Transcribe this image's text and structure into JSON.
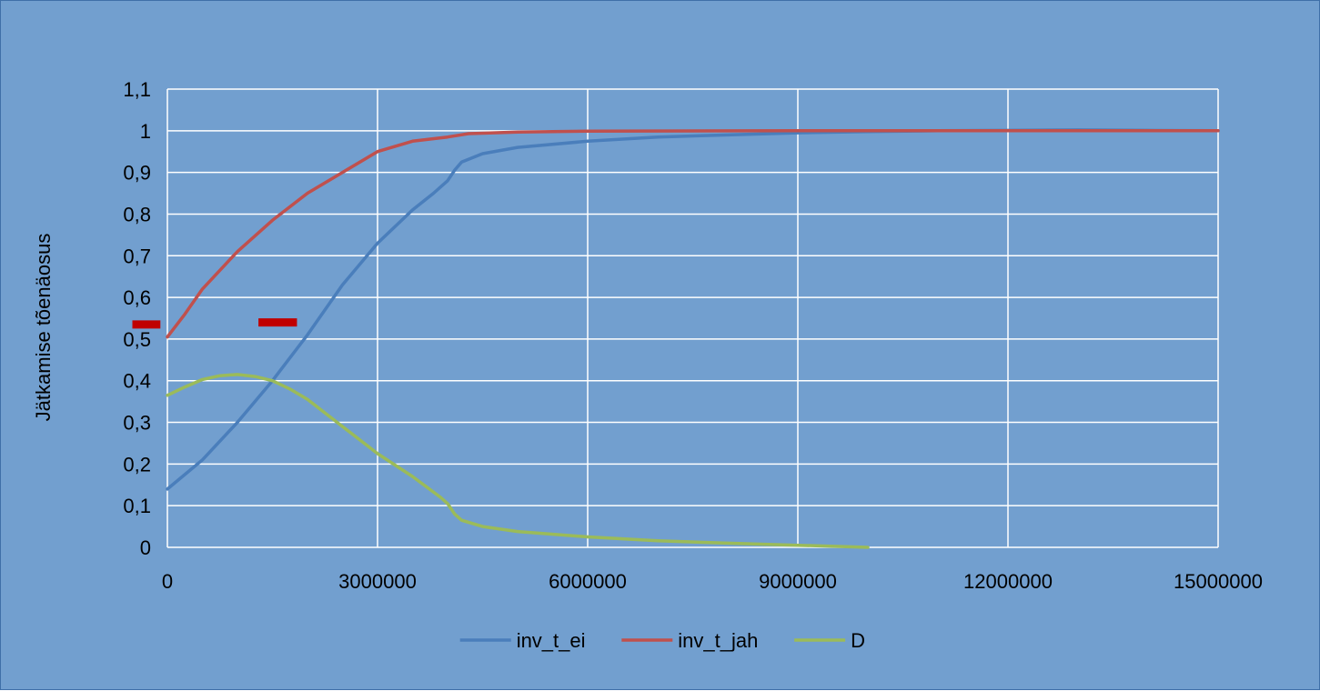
{
  "chart_data": {
    "type": "line",
    "title": "",
    "xlabel": "",
    "ylabel": "Jätkamise tõenäosus",
    "xlim": [
      0,
      15000000
    ],
    "ylim": [
      0,
      1.1
    ],
    "x_ticks": [
      "0",
      "3000000",
      "6000000",
      "9000000",
      "12000000",
      "15000000"
    ],
    "y_ticks": [
      "0",
      "0,1",
      "0,2",
      "0,3",
      "0,4",
      "0,5",
      "0,6",
      "0,7",
      "0,8",
      "0,9",
      "1",
      "1,1"
    ],
    "grid": true,
    "legend_position": "bottom",
    "colors": {
      "background": "#729fcf",
      "grid": "#ffffff",
      "marker": "#c00000"
    },
    "series": [
      {
        "name": "inv_t_ei",
        "color": "#4a7ebb",
        "points": [
          [
            0,
            0.14
          ],
          [
            500000,
            0.21
          ],
          [
            1000000,
            0.3
          ],
          [
            1500000,
            0.4
          ],
          [
            2000000,
            0.51
          ],
          [
            2500000,
            0.63
          ],
          [
            3000000,
            0.73
          ],
          [
            3500000,
            0.81
          ],
          [
            3800000,
            0.85
          ],
          [
            4000000,
            0.88
          ],
          [
            4100000,
            0.905
          ],
          [
            4200000,
            0.925
          ],
          [
            4500000,
            0.945
          ],
          [
            5000000,
            0.96
          ],
          [
            6000000,
            0.975
          ],
          [
            7000000,
            0.985
          ],
          [
            8000000,
            0.99
          ],
          [
            9000000,
            0.995
          ],
          [
            10000000,
            0.998
          ],
          [
            11000000,
            1.0
          ],
          [
            12000000,
            1.001
          ],
          [
            13000000,
            1.002
          ],
          [
            14000000,
            1.001
          ],
          [
            15000000,
            1.0
          ]
        ]
      },
      {
        "name": "inv_t_jah",
        "color": "#c0504d",
        "points": [
          [
            0,
            0.505
          ],
          [
            250000,
            0.56
          ],
          [
            500000,
            0.62
          ],
          [
            1000000,
            0.71
          ],
          [
            1500000,
            0.785
          ],
          [
            2000000,
            0.85
          ],
          [
            2500000,
            0.9
          ],
          [
            3000000,
            0.95
          ],
          [
            3500000,
            0.975
          ],
          [
            4000000,
            0.985
          ],
          [
            4300000,
            0.993
          ],
          [
            5000000,
            0.997
          ],
          [
            6000000,
            0.999
          ],
          [
            9000000,
            1.0
          ],
          [
            12000000,
            1.0
          ],
          [
            15000000,
            1.0
          ]
        ]
      },
      {
        "name": "D",
        "color": "#9bbb59",
        "points": [
          [
            0,
            0.365
          ],
          [
            250000,
            0.385
          ],
          [
            500000,
            0.403
          ],
          [
            750000,
            0.412
          ],
          [
            1000000,
            0.415
          ],
          [
            1250000,
            0.41
          ],
          [
            1500000,
            0.4
          ],
          [
            1750000,
            0.38
          ],
          [
            2000000,
            0.355
          ],
          [
            2500000,
            0.29
          ],
          [
            3000000,
            0.225
          ],
          [
            3500000,
            0.17
          ],
          [
            3900000,
            0.12
          ],
          [
            4000000,
            0.105
          ],
          [
            4100000,
            0.08
          ],
          [
            4200000,
            0.065
          ],
          [
            4500000,
            0.05
          ],
          [
            5000000,
            0.038
          ],
          [
            6000000,
            0.025
          ],
          [
            7000000,
            0.016
          ],
          [
            8000000,
            0.01
          ],
          [
            9000000,
            0.005
          ],
          [
            10000000,
            0.0
          ]
        ]
      }
    ],
    "markers": [
      {
        "x_start": -500000,
        "x_end": -100000,
        "y": 0.535
      },
      {
        "x_start": 1300000,
        "x_end": 1850000,
        "y": 0.54
      }
    ]
  }
}
